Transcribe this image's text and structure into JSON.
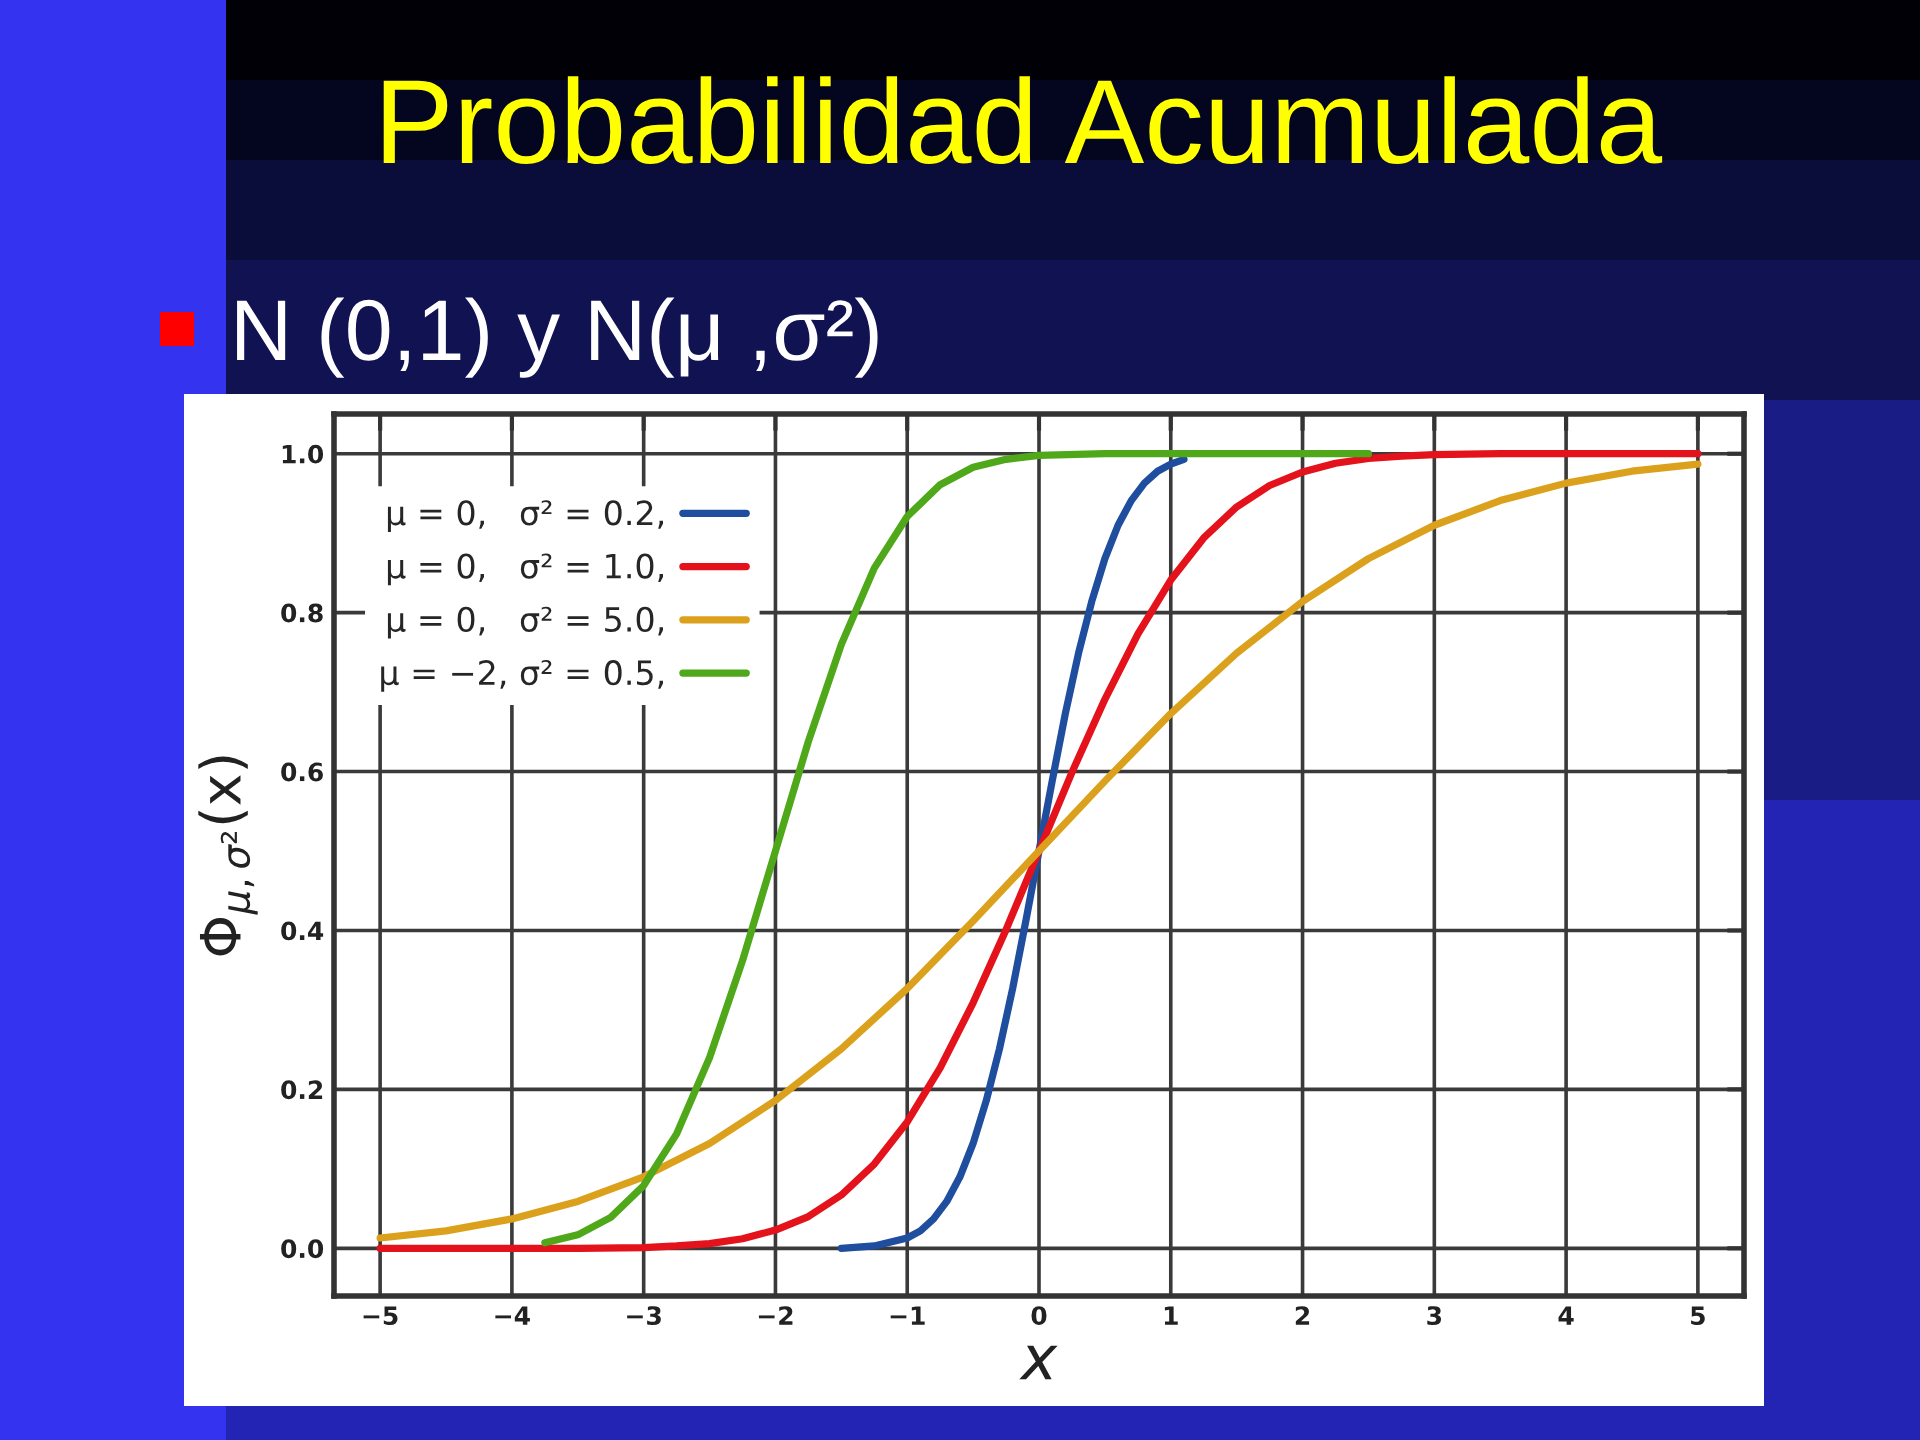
{
  "chart_data": {
    "type": "line",
    "title": "Probabilidad Acumulada",
    "subtitle": "N (0,1) y N(μ ,σ²)",
    "xlabel": "x",
    "ylabel": "Φ$_{μ,σ²}$(x)",
    "xlim": [
      -5.35,
      5.35
    ],
    "ylim": [
      -0.06,
      1.05
    ],
    "xticks": [
      {
        "value": -5,
        "label": "−5"
      },
      {
        "value": -4,
        "label": "−4"
      },
      {
        "value": -3,
        "label": "−3"
      },
      {
        "value": -2,
        "label": "−2"
      },
      {
        "value": -1,
        "label": "−1"
      },
      0,
      1,
      2,
      3,
      4,
      5
    ],
    "yticks": [
      {
        "value": 0,
        "label": "0.0"
      },
      0.2,
      0.4,
      0.6,
      0.8,
      {
        "value": 1,
        "label": "1.0"
      }
    ],
    "grid": true,
    "legend": "top left",
    "line_style": "solid",
    "series": [
      {
        "name": "μ = 0,   σ² = 0.2,",
        "color": "#1f4e9e",
        "x": [
          -1.5,
          -1.25,
          -1,
          -0.9,
          -0.8,
          -0.7,
          -0.6,
          -0.5,
          -0.4,
          -0.3,
          -0.2,
          -0.1,
          0,
          0.1,
          0.2,
          0.3,
          0.4,
          0.5,
          0.6,
          0.7,
          0.8,
          0.9,
          1,
          1.1
        ],
        "values": [
          0,
          0.003,
          0.013,
          0.022,
          0.037,
          0.059,
          0.09,
          0.132,
          0.186,
          0.251,
          0.327,
          0.412,
          0.5,
          0.588,
          0.673,
          0.749,
          0.814,
          0.868,
          0.91,
          0.941,
          0.963,
          0.978,
          0.987,
          0.993
        ]
      },
      {
        "name": "μ = 0,   σ² = 1.0,",
        "color": "#e3121b",
        "x": [
          -5,
          -4,
          -3.5,
          -3,
          -2.75,
          -2.5,
          -2.25,
          -2,
          -1.75,
          -1.5,
          -1.25,
          -1,
          -0.75,
          -0.5,
          -0.25,
          0,
          0.25,
          0.5,
          0.75,
          1,
          1.25,
          1.5,
          1.75,
          2,
          2.25,
          2.5,
          2.75,
          3,
          3.5,
          4,
          5
        ],
        "values": [
          0,
          0,
          0,
          0.001,
          0.003,
          0.006,
          0.012,
          0.023,
          0.04,
          0.067,
          0.106,
          0.159,
          0.227,
          0.309,
          0.401,
          0.5,
          0.599,
          0.691,
          0.773,
          0.841,
          0.894,
          0.933,
          0.96,
          0.977,
          0.988,
          0.994,
          0.997,
          0.999,
          1,
          1,
          1
        ]
      },
      {
        "name": "μ = 0,   σ² = 5.0,",
        "color": "#dba11c",
        "x": [
          -5,
          -4.5,
          -4,
          -3.5,
          -3,
          -2.5,
          -2,
          -1.5,
          -1,
          -0.5,
          0,
          0.5,
          1,
          1.5,
          2,
          2.5,
          3,
          3.5,
          4,
          4.5,
          5
        ],
        "values": [
          0.013,
          0.022,
          0.037,
          0.059,
          0.09,
          0.132,
          0.186,
          0.251,
          0.327,
          0.412,
          0.5,
          0.588,
          0.673,
          0.749,
          0.814,
          0.868,
          0.91,
          0.941,
          0.963,
          0.978,
          0.987
        ]
      },
      {
        "name": "μ = −2, σ² = 0.5,",
        "color": "#4fa819",
        "x": [
          -3.75,
          -3.5,
          -3.25,
          -3,
          -2.75,
          -2.5,
          -2.25,
          -2,
          -1.75,
          -1.5,
          -1.25,
          -1,
          -0.75,
          -0.5,
          -0.25,
          0,
          0.5,
          1,
          2.5
        ],
        "values": [
          0.007,
          0.017,
          0.039,
          0.079,
          0.144,
          0.24,
          0.362,
          0.5,
          0.638,
          0.76,
          0.856,
          0.921,
          0.961,
          0.983,
          0.993,
          0.998,
          1,
          1,
          1
        ]
      }
    ]
  }
}
